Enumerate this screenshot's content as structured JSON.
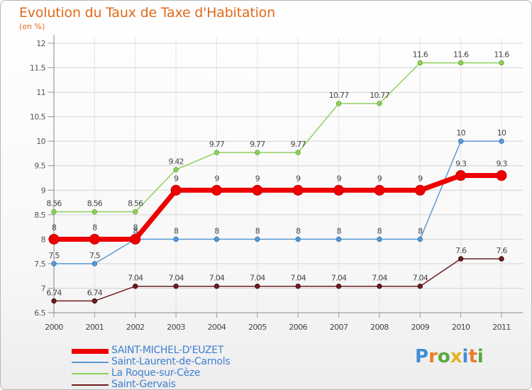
{
  "header": {
    "title": "Evolution du Taux de Taxe d'Habitation",
    "subtitle": "(en %)"
  },
  "brand": {
    "letters": [
      "P",
      "r",
      "o",
      "x",
      "i",
      "t",
      "i"
    ],
    "colors": [
      "#3e8fd6",
      "#e87d2c",
      "#5aa83b",
      "#e8b026",
      "#3e8fd6",
      "#e87d2c",
      "#5aa83b"
    ]
  },
  "chart_data": {
    "type": "line",
    "x": [
      "2000",
      "2001",
      "2002",
      "2003",
      "2004",
      "2005",
      "2006",
      "2007",
      "2008",
      "2009",
      "2010",
      "2011"
    ],
    "ylim": [
      6.5,
      12
    ],
    "yticks": [
      "6.5",
      "7",
      "7.5",
      "8",
      "8.5",
      "9",
      "9.5",
      "10",
      "10.5",
      "11",
      "11.5",
      "12"
    ],
    "grid": true,
    "legend": "bottom-left",
    "series": [
      {
        "name": "SAINT-MICHEL-D'EUZET",
        "color": "#ee0000",
        "values": [
          8,
          8,
          8,
          9,
          9,
          9,
          9,
          9,
          9,
          9,
          9.3,
          9.3
        ],
        "labels": [
          "8",
          "8",
          "8",
          "9",
          "9",
          "9",
          "9",
          "9",
          "9",
          "9",
          "9.3",
          "9.3"
        ]
      },
      {
        "name": "Saint-Laurent-de-Carnols",
        "color": "#5a9ad6",
        "values": [
          7.5,
          7.5,
          8,
          8,
          8,
          8,
          8,
          8,
          8,
          8,
          10,
          10
        ],
        "labels": [
          "7.5",
          "7.5",
          "8",
          "8",
          "8",
          "8",
          "8",
          "8",
          "8",
          "8",
          "10",
          "10"
        ]
      },
      {
        "name": "La Roque-sur-Cèze",
        "color": "#8fd15c",
        "values": [
          8.56,
          8.56,
          8.56,
          9.42,
          9.77,
          9.77,
          9.77,
          10.77,
          10.77,
          11.6,
          11.6,
          11.6
        ],
        "labels": [
          "8.56",
          "8.56",
          "8.56",
          "9.42",
          "9.77",
          "9.77",
          "9.77",
          "10.77",
          "10.77",
          "11.6",
          "11.6",
          "11.6"
        ]
      },
      {
        "name": "Saint-Gervais",
        "color": "#6e1e1e",
        "values": [
          6.74,
          6.74,
          7.04,
          7.04,
          7.04,
          7.04,
          7.04,
          7.04,
          7.04,
          7.04,
          7.6,
          7.6
        ],
        "labels": [
          "6.74",
          "6.74",
          "7.04",
          "7.04",
          "7.04",
          "7.04",
          "7.04",
          "7.04",
          "7.04",
          "7.04",
          "7.6",
          "7.6"
        ]
      }
    ]
  }
}
